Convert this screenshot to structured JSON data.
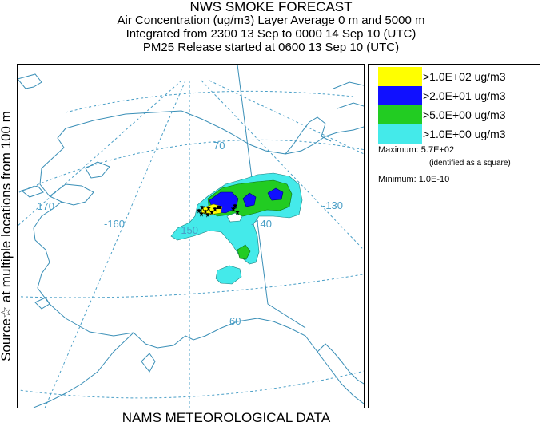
{
  "header": {
    "title": "NWS SMOKE FORECAST",
    "line1": "Air Concentration (ug/m3) Layer Average    0 m and  5000 m",
    "line2": "Integrated from 2300 13 Sep to 0000 14 Sep 10 (UTC)",
    "line3": "PM25 Release started at 0600 13 Sep 10 (UTC)"
  },
  "side_label": "Source☆  at multiple locations   from   100 m",
  "footer": "NAMS METEOROLOGICAL DATA",
  "map": {
    "grid_labels": {
      "lat_70": "70",
      "lat_60": "60",
      "lon_170": "-170",
      "lon_160": "-160",
      "lon_150": "-150",
      "lon_140": "-140",
      "lon_130": "-130"
    },
    "colors": {
      "grid": "#4a9fc7",
      "coast": "#3a8fb7",
      "level_1": "#44eaea",
      "level_2": "#22cc22",
      "level_3": "#1010ff",
      "level_4": "#ffff00",
      "source_marker": "#000000"
    }
  },
  "legend": {
    "levels": [
      {
        "label": ">1.0E+02 ug/m3",
        "color": "#ffff00"
      },
      {
        "label": ">2.0E+01 ug/m3",
        "color": "#1010ff"
      },
      {
        "label": ">5.0E+00 ug/m3",
        "color": "#22cc22"
      },
      {
        "label": ">1.0E+00 ug/m3",
        "color": "#44eaea"
      }
    ],
    "maximum_label": "Maximum:",
    "maximum_value": "5.7E+02",
    "maximum_note": "(identified as a square)",
    "minimum_label": "Minimum:",
    "minimum_value": "1.0E-10"
  }
}
